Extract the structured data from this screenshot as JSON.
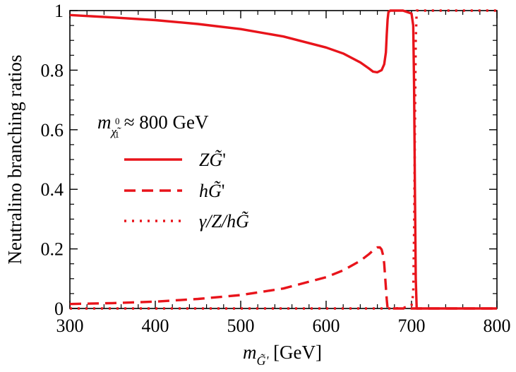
{
  "chart_data": {
    "type": "line",
    "title": "",
    "xlabel_main": "m",
    "xlabel_sub": "G̃'",
    "xlabel_unit": "[GeV]",
    "ylabel": "Neutralino branching ratios",
    "xlim": [
      300,
      800
    ],
    "ylim": [
      0,
      1
    ],
    "xticks": [
      300,
      400,
      500,
      600,
      700,
      800
    ],
    "yticks": [
      0,
      0.2,
      0.4,
      0.6,
      0.8,
      1
    ],
    "ytick_labels": [
      "0",
      "0.2",
      "0.4",
      "0.6",
      "0.8",
      "1"
    ],
    "color": "#e8141b",
    "annotation": {
      "main": "m",
      "sub": "χ̃",
      "sup": "0",
      "subsub": "1",
      "rest": "≈ 800 GeV"
    },
    "series": [
      {
        "name": "ZG̃'",
        "label_main": "Z",
        "label_g": "G̃",
        "label_suffix": "'",
        "style": "solid",
        "x": [
          300,
          350,
          400,
          450,
          500,
          550,
          600,
          620,
          640,
          650,
          655,
          660,
          665,
          668,
          670,
          671,
          672,
          673,
          675,
          680,
          690,
          700,
          702,
          703,
          704,
          705,
          706,
          710,
          750,
          800
        ],
        "y": [
          0.985,
          0.977,
          0.968,
          0.955,
          0.938,
          0.913,
          0.876,
          0.856,
          0.826,
          0.806,
          0.795,
          0.793,
          0.8,
          0.82,
          0.86,
          0.92,
          0.97,
          0.995,
          1.0,
          1.0,
          1.0,
          0.99,
          0.95,
          0.75,
          0.4,
          0.1,
          0.0,
          0.0,
          0.0,
          0.0
        ]
      },
      {
        "name": "hG̃'",
        "label_main": "h",
        "label_g": "G̃",
        "label_suffix": "'",
        "style": "dashed",
        "x": [
          300,
          350,
          400,
          450,
          500,
          550,
          600,
          620,
          640,
          650,
          655,
          660,
          663,
          665,
          667,
          668,
          669,
          670,
          671,
          672,
          680,
          700,
          705,
          710,
          750,
          800
        ],
        "y": [
          0.015,
          0.018,
          0.023,
          0.032,
          0.045,
          0.067,
          0.105,
          0.128,
          0.16,
          0.182,
          0.195,
          0.205,
          0.205,
          0.198,
          0.175,
          0.15,
          0.11,
          0.07,
          0.03,
          0.0,
          0.0,
          0.0,
          0.0,
          0.0,
          0.0,
          0.0
        ]
      },
      {
        "name": "γ/Z/hG̃",
        "label_main": "γ/Z/h",
        "label_g": "G̃",
        "label_suffix": "",
        "style": "dotted",
        "x": [
          300,
          650,
          680,
          690,
          700,
          702,
          703,
          704,
          705,
          706,
          710,
          750,
          800
        ],
        "y": [
          0.0,
          0.0,
          0.0,
          0.002,
          0.01,
          0.05,
          0.25,
          0.6,
          0.9,
          1.0,
          1.0,
          1.0,
          1.0
        ]
      }
    ]
  }
}
